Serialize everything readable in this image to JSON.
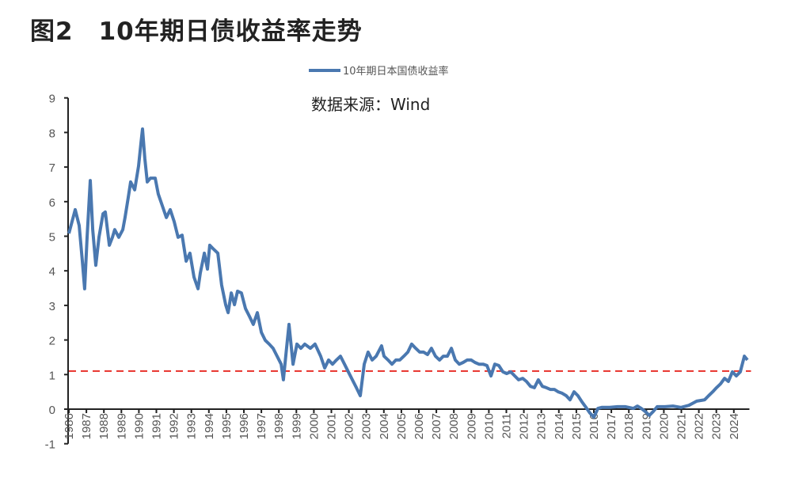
{
  "title": "图2　10年期日债收益率走势",
  "chart_data": {
    "type": "line",
    "title": "图2　10年期日债收益率走势",
    "annotation": "数据来源：Wind",
    "legend": {
      "placement": "top-center"
    },
    "xlabel": "",
    "ylabel": "",
    "ylim": [
      -1,
      9
    ],
    "xlim": [
      1986,
      2024.8
    ],
    "grid": false,
    "yticks": [
      "-1",
      "0",
      "1",
      "2",
      "3",
      "4",
      "5",
      "6",
      "7",
      "8",
      "9"
    ],
    "xticks": [
      "1986",
      "1987",
      "1988",
      "1989",
      "1990",
      "1991",
      "1992",
      "1993",
      "1994",
      "1995",
      "1996",
      "1997",
      "1998",
      "1999",
      "2000",
      "2001",
      "2002",
      "2003",
      "2004",
      "2005",
      "2006",
      "2007",
      "2008",
      "2009",
      "2010",
      "2011",
      "2012",
      "2013",
      "2014",
      "2015",
      "2016",
      "2017",
      "2018",
      "2019",
      "2020",
      "2021",
      "2022",
      "2023",
      "2024"
    ],
    "reference_line": {
      "y": 1.1,
      "color": "#e8302a",
      "style": "dashed"
    },
    "series": [
      {
        "name": "10年期日本国债收益率",
        "color": "#4a78b0",
        "x": [
          1986.0,
          1986.36,
          1986.59,
          1986.77,
          1986.9,
          1987.04,
          1987.22,
          1987.36,
          1987.54,
          1987.72,
          1987.95,
          1988.08,
          1988.31,
          1988.49,
          1988.62,
          1988.85,
          1989.08,
          1989.21,
          1989.39,
          1989.53,
          1989.76,
          1989.98,
          1990.12,
          1990.21,
          1990.34,
          1990.48,
          1990.66,
          1990.93,
          1991.11,
          1991.34,
          1991.57,
          1991.79,
          1992.02,
          1992.24,
          1992.47,
          1992.7,
          1992.92,
          1993.15,
          1993.38,
          1993.51,
          1993.74,
          1993.92,
          1994.05,
          1994.28,
          1994.51,
          1994.73,
          1994.96,
          1995.1,
          1995.28,
          1995.46,
          1995.64,
          1995.86,
          1996.09,
          1996.32,
          1996.54,
          1996.77,
          1997.0,
          1997.22,
          1997.45,
          1997.67,
          1997.9,
          1998.13,
          1998.26,
          1998.44,
          1998.58,
          1998.81,
          1999.03,
          1999.26,
          1999.48,
          1999.8,
          2000.07,
          2000.39,
          2000.62,
          2000.84,
          2001.07,
          2001.29,
          2001.52,
          2001.75,
          2001.97,
          2002.2,
          2002.43,
          2002.65,
          2002.88,
          2003.1,
          2003.33,
          2003.56,
          2003.87,
          2004.01,
          2004.24,
          2004.46,
          2004.69,
          2004.91,
          2005.14,
          2005.37,
          2005.59,
          2005.82,
          2006.05,
          2006.27,
          2006.5,
          2006.72,
          2006.95,
          2007.18,
          2007.4,
          2007.63,
          2007.86,
          2008.08,
          2008.31,
          2008.53,
          2008.76,
          2008.99,
          2009.21,
          2009.44,
          2009.67,
          2009.89,
          2010.12,
          2010.34,
          2010.57,
          2010.8,
          2011.02,
          2011.25,
          2011.48,
          2011.7,
          2011.93,
          2012.15,
          2012.38,
          2012.6,
          2012.83,
          2013.06,
          2013.29,
          2013.51,
          2013.74,
          2013.96,
          2014.19,
          2014.42,
          2014.64,
          2014.87,
          2015.09,
          2015.32,
          2015.55,
          2015.77,
          2016.0,
          2016.23,
          2016.45,
          2016.9,
          2017.36,
          2017.81,
          2018.26,
          2018.49,
          2018.71,
          2018.94,
          2019.17,
          2019.39,
          2019.62,
          2020.07,
          2020.52,
          2020.98,
          2021.43,
          2021.88,
          2022.33,
          2022.56,
          2022.79,
          2023.01,
          2023.24,
          2023.47,
          2023.69,
          2023.92,
          2024.14,
          2024.37,
          2024.6,
          2024.78
        ],
        "y": [
          5.08,
          5.77,
          5.31,
          4.28,
          3.48,
          4.97,
          6.61,
          5.19,
          4.16,
          4.97,
          5.65,
          5.7,
          4.74,
          4.97,
          5.19,
          4.97,
          5.19,
          5.54,
          6.11,
          6.57,
          6.34,
          7.03,
          7.71,
          8.1,
          7.25,
          6.57,
          6.68,
          6.68,
          6.22,
          5.88,
          5.54,
          5.77,
          5.42,
          4.97,
          5.03,
          4.28,
          4.51,
          3.82,
          3.48,
          3.94,
          4.51,
          4.05,
          4.74,
          4.62,
          4.51,
          3.59,
          3.02,
          2.79,
          3.36,
          3.02,
          3.41,
          3.36,
          2.91,
          2.68,
          2.45,
          2.79,
          2.22,
          1.99,
          1.88,
          1.76,
          1.53,
          1.3,
          0.85,
          1.76,
          2.45,
          1.3,
          1.88,
          1.76,
          1.88,
          1.76,
          1.88,
          1.53,
          1.19,
          1.42,
          1.3,
          1.42,
          1.53,
          1.3,
          1.08,
          0.85,
          0.62,
          0.39,
          1.3,
          1.65,
          1.42,
          1.53,
          1.83,
          1.53,
          1.42,
          1.3,
          1.42,
          1.42,
          1.53,
          1.65,
          1.88,
          1.76,
          1.65,
          1.65,
          1.58,
          1.76,
          1.53,
          1.42,
          1.53,
          1.53,
          1.76,
          1.42,
          1.3,
          1.35,
          1.42,
          1.42,
          1.35,
          1.3,
          1.3,
          1.26,
          0.96,
          1.3,
          1.26,
          1.08,
          1.03,
          1.08,
          0.96,
          0.85,
          0.89,
          0.8,
          0.66,
          0.62,
          0.85,
          0.66,
          0.62,
          0.57,
          0.57,
          0.5,
          0.46,
          0.39,
          0.27,
          0.5,
          0.39,
          0.21,
          0.05,
          -0.11,
          -0.23,
          0.02,
          0.05,
          0.05,
          0.07,
          0.07,
          0.02,
          0.09,
          0.02,
          -0.07,
          -0.18,
          -0.07,
          0.07,
          0.07,
          0.09,
          0.05,
          0.11,
          0.23,
          0.27,
          0.39,
          0.5,
          0.62,
          0.73,
          0.89,
          0.8,
          1.08,
          0.96,
          1.08,
          1.53,
          1.42
        ]
      }
    ]
  }
}
